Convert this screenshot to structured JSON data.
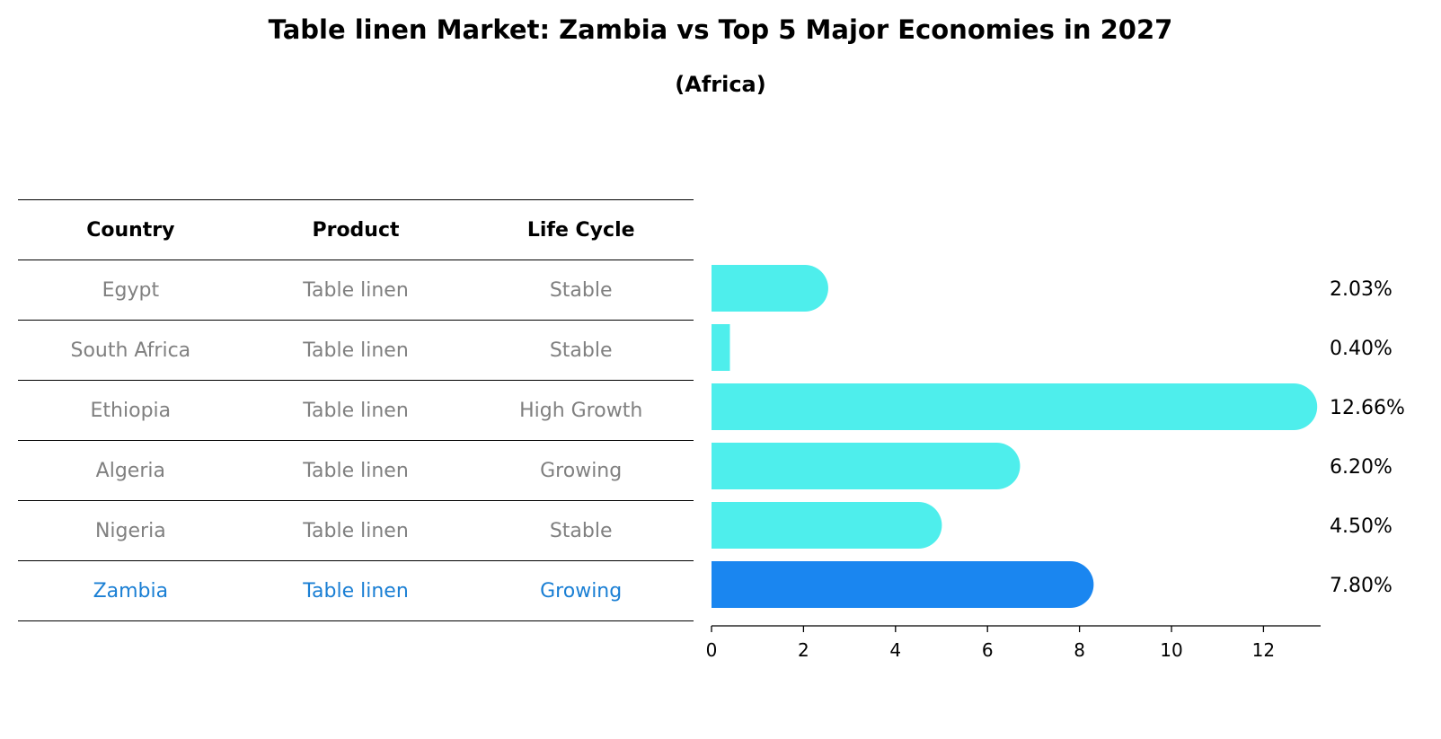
{
  "title": "Table linen Market: Zambia vs Top 5 Major Economies in 2027",
  "subtitle": "(Africa)",
  "table": {
    "headers": [
      "Country",
      "Product",
      "Life Cycle"
    ],
    "rows": [
      [
        "Egypt",
        "Table linen",
        "Stable"
      ],
      [
        "South Africa",
        "Table linen",
        "Stable"
      ],
      [
        "Ethiopia",
        "Table linen",
        "High Growth"
      ],
      [
        "Algeria",
        "Table linen",
        "Growing"
      ],
      [
        "Nigeria",
        "Table linen",
        "Stable"
      ],
      [
        "Zambia",
        "Table linen",
        "Growing"
      ]
    ]
  },
  "chart_data": {
    "type": "bar",
    "orientation": "horizontal",
    "categories": [
      "Egypt",
      "South Africa",
      "Ethiopia",
      "Algeria",
      "Nigeria",
      "Zambia"
    ],
    "values": [
      2.03,
      0.4,
      12.66,
      6.2,
      4.5,
      7.8
    ],
    "value_labels": [
      "2.03%",
      "0.40%",
      "12.66%",
      "6.20%",
      "4.50%",
      "7.80%"
    ],
    "highlight": "Zambia",
    "xlim": [
      0,
      13.3
    ],
    "xticks": [
      0,
      2,
      4,
      6,
      8,
      10,
      12
    ],
    "grid": false,
    "colors": {
      "default": "#4eeeec",
      "highlight": "#1a86f0"
    }
  }
}
